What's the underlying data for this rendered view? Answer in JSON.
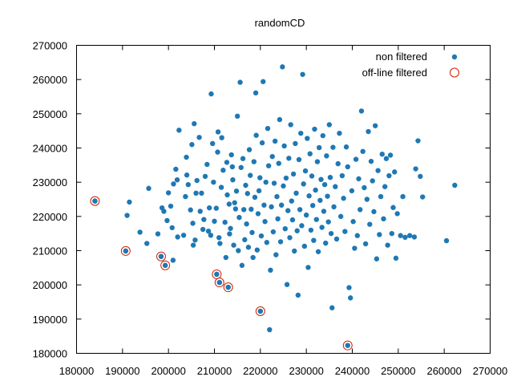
{
  "chart_data": {
    "type": "scatter",
    "title": "randomCD",
    "xlabel": "",
    "ylabel": "",
    "xlim": [
      180000,
      270000
    ],
    "ylim": [
      180000,
      270000
    ],
    "xticks": [
      180000,
      190000,
      200000,
      210000,
      220000,
      230000,
      240000,
      250000,
      260000,
      270000
    ],
    "yticks": [
      180000,
      190000,
      200000,
      210000,
      220000,
      230000,
      240000,
      250000,
      260000,
      270000
    ],
    "grid": false,
    "legend_position": "top-right",
    "series": [
      {
        "name": "non filtered",
        "color": "#1f78b4",
        "marker": "filled-dot",
        "points": [
          [
            184000,
            224500
          ],
          [
            190700,
            209900
          ],
          [
            191000,
            220300
          ],
          [
            191500,
            224200
          ],
          [
            193800,
            215400
          ],
          [
            195300,
            212100
          ],
          [
            195700,
            228200
          ],
          [
            197700,
            214900
          ],
          [
            198400,
            208300
          ],
          [
            198600,
            222500
          ],
          [
            199000,
            221500
          ],
          [
            199300,
            205700
          ],
          [
            199700,
            218800
          ],
          [
            200000,
            226900
          ],
          [
            200500,
            223000
          ],
          [
            200800,
            216700
          ],
          [
            201000,
            207200
          ],
          [
            201100,
            229500
          ],
          [
            201600,
            233800
          ],
          [
            201900,
            230700
          ],
          [
            202000,
            214000
          ],
          [
            202300,
            245200
          ],
          [
            203300,
            214500
          ],
          [
            203700,
            225800
          ],
          [
            203900,
            237300
          ],
          [
            204000,
            232100
          ],
          [
            204300,
            229300
          ],
          [
            204800,
            221900
          ],
          [
            205100,
            241000
          ],
          [
            205300,
            218000
          ],
          [
            205400,
            211600
          ],
          [
            205600,
            247100
          ],
          [
            205800,
            213100
          ],
          [
            206000,
            226800
          ],
          [
            206200,
            230500
          ],
          [
            206700,
            243100
          ],
          [
            206900,
            221500
          ],
          [
            207200,
            226800
          ],
          [
            207500,
            216200
          ],
          [
            207700,
            219100
          ],
          [
            208000,
            231700
          ],
          [
            208400,
            235200
          ],
          [
            208700,
            215700
          ],
          [
            208900,
            222500
          ],
          [
            209200,
            214500
          ],
          [
            209300,
            255800
          ],
          [
            209600,
            241300
          ],
          [
            209800,
            230000
          ],
          [
            210000,
            218600
          ],
          [
            210400,
            222400
          ],
          [
            210500,
            203100
          ],
          [
            210700,
            238800
          ],
          [
            210800,
            244700
          ],
          [
            211000,
            213800
          ],
          [
            211100,
            200700
          ],
          [
            211200,
            212100
          ],
          [
            211500,
            228500
          ],
          [
            211600,
            243000
          ],
          [
            211900,
            233500
          ],
          [
            212300,
            218300
          ],
          [
            212500,
            208000
          ],
          [
            212700,
            235800
          ],
          [
            212800,
            226300
          ],
          [
            213000,
            199300
          ],
          [
            213200,
            223600
          ],
          [
            213300,
            214900
          ],
          [
            213500,
            216500
          ],
          [
            213700,
            238000
          ],
          [
            213900,
            234500
          ],
          [
            214000,
            230700
          ],
          [
            214200,
            211600
          ],
          [
            214400,
            224000
          ],
          [
            214600,
            222200
          ],
          [
            214800,
            227400
          ],
          [
            215000,
            249300
          ],
          [
            215200,
            210000
          ],
          [
            215400,
            219700
          ],
          [
            215600,
            259200
          ],
          [
            215800,
            234300
          ],
          [
            216000,
            205700
          ],
          [
            216200,
            236900
          ],
          [
            216400,
            222000
          ],
          [
            216600,
            213200
          ],
          [
            216800,
            229100
          ],
          [
            217000,
            217800
          ],
          [
            217200,
            226700
          ],
          [
            217400,
            211000
          ],
          [
            217600,
            239500
          ],
          [
            217800,
            232000
          ],
          [
            218000,
            222100
          ],
          [
            218200,
            215300
          ],
          [
            218400,
            208000
          ],
          [
            218600,
            236000
          ],
          [
            218800,
            225600
          ],
          [
            219000,
            256100
          ],
          [
            219100,
            243700
          ],
          [
            219300,
            210200
          ],
          [
            219500,
            220800
          ],
          [
            219700,
            227500
          ],
          [
            219900,
            231300
          ],
          [
            220000,
            192300
          ],
          [
            220200,
            214300
          ],
          [
            220400,
            241500
          ],
          [
            220600,
            259400
          ],
          [
            220800,
            223300
          ],
          [
            221000,
            218500
          ],
          [
            221200,
            230000
          ],
          [
            221400,
            212400
          ],
          [
            221600,
            245700
          ],
          [
            221800,
            234800
          ],
          [
            222000,
            186900
          ],
          [
            222200,
            204300
          ],
          [
            222400,
            222800
          ],
          [
            222600,
            237500
          ],
          [
            222800,
            215500
          ],
          [
            223000,
            229700
          ],
          [
            223200,
            242000
          ],
          [
            223400,
            208800
          ],
          [
            223600,
            225800
          ],
          [
            223800,
            219300
          ],
          [
            224000,
            235500
          ],
          [
            224200,
            248300
          ],
          [
            224400,
            212600
          ],
          [
            224600,
            223300
          ],
          [
            224800,
            263700
          ],
          [
            225000,
            228900
          ],
          [
            225200,
            240600
          ],
          [
            225400,
            216400
          ],
          [
            225600,
            231200
          ],
          [
            225800,
            200100
          ],
          [
            226000,
            221700
          ],
          [
            226200,
            237000
          ],
          [
            226400,
            213800
          ],
          [
            226600,
            246800
          ],
          [
            226800,
            224500
          ],
          [
            227000,
            219000
          ],
          [
            227200,
            232400
          ],
          [
            227400,
            209900
          ],
          [
            227600,
            241300
          ],
          [
            227800,
            226800
          ],
          [
            228000,
            215800
          ],
          [
            228200,
            197000
          ],
          [
            228400,
            236600
          ],
          [
            228600,
            222000
          ],
          [
            228800,
            244300
          ],
          [
            229000,
            217300
          ],
          [
            229200,
            261500
          ],
          [
            229400,
            229500
          ],
          [
            229600,
            211300
          ],
          [
            229800,
            233300
          ],
          [
            230000,
            220400
          ],
          [
            230200,
            242800
          ],
          [
            230400,
            205100
          ],
          [
            230600,
            226000
          ],
          [
            230800,
            238300
          ],
          [
            231000,
            216000
          ],
          [
            231200,
            231800
          ],
          [
            231400,
            223200
          ],
          [
            231600,
            213000
          ],
          [
            231800,
            245500
          ],
          [
            232000,
            227700
          ],
          [
            232200,
            219100
          ],
          [
            232400,
            236000
          ],
          [
            232600,
            209700
          ],
          [
            232800,
            240100
          ],
          [
            233000,
            224700
          ],
          [
            233200,
            230800
          ],
          [
            233400,
            216800
          ],
          [
            233600,
            243600
          ],
          [
            233800,
            221500
          ],
          [
            234000,
            229300
          ],
          [
            234200,
            212200
          ],
          [
            234400,
            237700
          ],
          [
            234600,
            225900
          ],
          [
            234800,
            218400
          ],
          [
            235000,
            246800
          ],
          [
            235200,
            231400
          ],
          [
            235400,
            215000
          ],
          [
            235600,
            193300
          ],
          [
            235800,
            240200
          ],
          [
            236000,
            222800
          ],
          [
            236300,
            228700
          ],
          [
            236600,
            213400
          ],
          [
            236900,
            235400
          ],
          [
            237200,
            244300
          ],
          [
            237500,
            220000
          ],
          [
            237800,
            231900
          ],
          [
            238100,
            225300
          ],
          [
            238400,
            215600
          ],
          [
            238700,
            240300
          ],
          [
            239000,
            234500
          ],
          [
            239300,
            199200
          ],
          [
            239600,
            196200
          ],
          [
            239900,
            227500
          ],
          [
            240200,
            218500
          ],
          [
            240500,
            210700
          ],
          [
            240800,
            236700
          ],
          [
            241100,
            214400
          ],
          [
            241400,
            231000
          ],
          [
            241700,
            222000
          ],
          [
            242000,
            250800
          ],
          [
            242300,
            239000
          ],
          [
            242600,
            228400
          ],
          [
            242900,
            212000
          ],
          [
            243200,
            225000
          ],
          [
            243500,
            244800
          ],
          [
            243800,
            217700
          ],
          [
            244100,
            236100
          ],
          [
            244400,
            230400
          ],
          [
            244700,
            221400
          ],
          [
            245000,
            246500
          ],
          [
            245300,
            207600
          ],
          [
            245600,
            233400
          ],
          [
            245900,
            214700
          ],
          [
            246200,
            225800
          ],
          [
            246500,
            238200
          ],
          [
            246800,
            219300
          ],
          [
            247100,
            228700
          ],
          [
            247400,
            236900
          ],
          [
            247700,
            211600
          ],
          [
            248000,
            231900
          ],
          [
            248300,
            237900
          ],
          [
            248600,
            215000
          ],
          [
            248900,
            222600
          ],
          [
            249200,
            233000
          ],
          [
            249500,
            207800
          ],
          [
            249800,
            220800
          ],
          [
            250500,
            214400
          ],
          [
            251000,
            225800
          ],
          [
            251500,
            213900
          ],
          [
            252500,
            214400
          ],
          [
            253500,
            214000
          ],
          [
            253800,
            233900
          ],
          [
            254300,
            242100
          ],
          [
            254800,
            231700
          ],
          [
            255300,
            225700
          ],
          [
            260500,
            212900
          ],
          [
            262300,
            229100
          ]
        ]
      },
      {
        "name": "off-line filtered",
        "color": "#cc2200",
        "marker": "open-circle",
        "points": [
          [
            184000,
            224500
          ],
          [
            190700,
            209900
          ],
          [
            198400,
            208300
          ],
          [
            199300,
            205700
          ],
          [
            210500,
            203100
          ],
          [
            211100,
            200700
          ],
          [
            213000,
            199300
          ],
          [
            220000,
            192300
          ],
          [
            239000,
            182300
          ]
        ]
      }
    ]
  }
}
